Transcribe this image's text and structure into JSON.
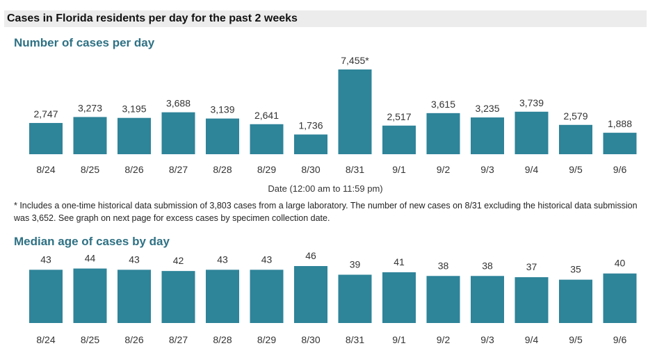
{
  "header": {
    "title": "Cases in Florida residents per day for the past 2 weeks"
  },
  "colors": {
    "bar": "#2e8499",
    "header_background": "#ececec",
    "section_title": "#2e7184"
  },
  "footnote": "* Includes a one-time historical data submission of 3,803 cases from a large laboratory. The number of new cases on 8/31 excluding the historical data submission was 3,652. See graph on next page for excess cases by specimen collection date.",
  "chart_data": [
    {
      "type": "bar",
      "title": "Number of cases per day",
      "xlabel": "Date (12:00 am to 11:59 pm)",
      "ylabel": "",
      "categories": [
        "8/24",
        "8/25",
        "8/26",
        "8/27",
        "8/28",
        "8/29",
        "8/30",
        "8/31",
        "9/1",
        "9/2",
        "9/3",
        "9/4",
        "9/5",
        "9/6"
      ],
      "values": [
        2747,
        3273,
        3195,
        3688,
        3139,
        2641,
        1736,
        7455,
        2517,
        3615,
        3235,
        3739,
        2579,
        1888
      ],
      "data_labels": [
        "2,747",
        "3,273",
        "3,195",
        "3,688",
        "3,139",
        "2,641",
        "1,736",
        "7,455*",
        "2,517",
        "3,615",
        "3,235",
        "3,739",
        "2,579",
        "1,888"
      ],
      "ylim": [
        0,
        7455
      ],
      "grid": false
    },
    {
      "type": "bar",
      "title": "Median age of cases by day",
      "xlabel": "",
      "ylabel": "",
      "categories": [
        "8/24",
        "8/25",
        "8/26",
        "8/27",
        "8/28",
        "8/29",
        "8/30",
        "8/31",
        "9/1",
        "9/2",
        "9/3",
        "9/4",
        "9/5",
        "9/6"
      ],
      "values": [
        43,
        44,
        43,
        42,
        43,
        43,
        46,
        39,
        41,
        38,
        38,
        37,
        35,
        40
      ],
      "data_labels": [
        "43",
        "44",
        "43",
        "42",
        "43",
        "43",
        "46",
        "39",
        "41",
        "38",
        "38",
        "37",
        "35",
        "40"
      ],
      "ylim": [
        0,
        46
      ],
      "grid": false
    }
  ]
}
